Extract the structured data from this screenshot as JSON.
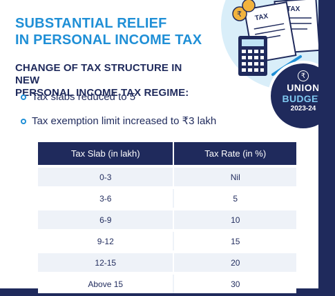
{
  "header": {
    "title_line1": "SUBSTANTIAL RELIEF",
    "title_line2": "IN PERSONAL INCOME TAX",
    "subtitle_line1": "CHANGE OF TAX STRUCTURE IN NEW",
    "subtitle_line2": "PERSONAL INCOME TAX REGIME:"
  },
  "bullets": [
    "Tax slabs reduced to 5",
    "Tax exemption limit increased to ₹3 lakh"
  ],
  "illustration": {
    "paper1_label": "TAX",
    "paper2_label": "TAX",
    "coin_symbol": "₹"
  },
  "badge": {
    "symbol": "₹",
    "line1": "UNION",
    "line2": "BUDGET",
    "line3": "2023-24"
  },
  "table": {
    "headers": [
      "Tax Slab (in lakh)",
      "Tax Rate (in %)"
    ],
    "rows": [
      [
        "0-3",
        "Nil"
      ],
      [
        "3-6",
        "5"
      ],
      [
        "6-9",
        "10"
      ],
      [
        "9-12",
        "15"
      ],
      [
        "12-15",
        "20"
      ],
      [
        "Above 15",
        "30"
      ]
    ]
  },
  "colors": {
    "navy": "#1f2a5c",
    "accent_blue": "#1f8fd6",
    "row_tint": "#eef2f8"
  }
}
